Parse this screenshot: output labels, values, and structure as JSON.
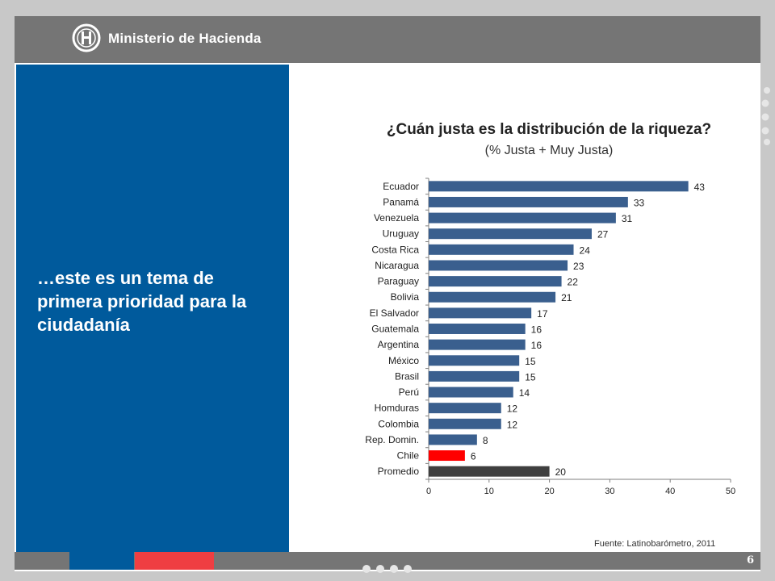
{
  "header": {
    "brand": "Ministerio de Hacienda"
  },
  "left_panel": {
    "text": "…este es un tema de primera prioridad para la ciudadanía"
  },
  "footer": {
    "page_number": "6"
  },
  "source": "Fuente: Latinobarómetro, 2011",
  "colors": {
    "blue_panel": "#005a9c",
    "bar_default": "#3a5f8e",
    "bar_chile": "#ff0000",
    "bar_promedio": "#3f3f3f",
    "footer_red": "#ef3e42"
  },
  "chart_data": {
    "type": "bar",
    "orientation": "horizontal",
    "title": "¿Cuán justa es la distribución de la riqueza?",
    "subtitle": "(% Justa + Muy Justa)",
    "categories": [
      "Ecuador",
      "Panamá",
      "Venezuela",
      "Uruguay",
      "Costa Rica",
      "Nicaragua",
      "Paraguay",
      "Bolivia",
      "El Salvador",
      "Guatemala",
      "Argentina",
      "México",
      "Brasil",
      "Perú",
      "Homduras",
      "Colombia",
      "Rep. Domin.",
      "Chile",
      "Promedio"
    ],
    "values": [
      43,
      33,
      31,
      27,
      24,
      23,
      22,
      21,
      17,
      16,
      16,
      15,
      15,
      14,
      12,
      12,
      8,
      6,
      20
    ],
    "highlight": {
      "Chile": "#ff0000",
      "Promedio": "#3f3f3f"
    },
    "xlim": [
      0,
      50
    ],
    "xticks": [
      0,
      10,
      20,
      30,
      40,
      50
    ],
    "grid": false,
    "legend": "none"
  }
}
